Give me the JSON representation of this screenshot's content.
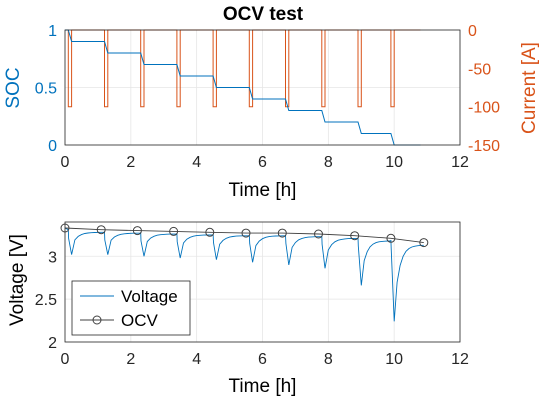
{
  "chart_data": [
    {
      "type": "line",
      "title": "OCV test",
      "xlabel": "Time [h]",
      "ylabel_left": "SOC",
      "ylabel_right": "Current [A]",
      "xlim": [
        0,
        12
      ],
      "ylim_left": [
        0,
        1
      ],
      "ylim_right": [
        -150,
        0
      ],
      "xticks": [
        "0",
        "2",
        "4",
        "6",
        "8",
        "10",
        "12"
      ],
      "yticks_left": [
        "0",
        "0.5",
        "1"
      ],
      "yticks_right": [
        "-150",
        "-100",
        "-50",
        "0"
      ],
      "grid": true,
      "colors": {
        "soc": "#0072BD",
        "current": "#D95319"
      },
      "pulse_starts_h": [
        0.1,
        1.2,
        2.3,
        3.4,
        4.5,
        5.6,
        6.7,
        7.8,
        8.9,
        9.9
      ],
      "pulse_duration_h": 0.1,
      "rest_current_a": 0,
      "pulse_current_a": -100,
      "series": [
        {
          "axis": "left",
          "x": [
            0,
            0.1,
            0.2,
            1.2,
            1.3,
            2.3,
            2.4,
            3.4,
            3.5,
            4.5,
            4.6,
            5.6,
            5.7,
            6.7,
            6.8,
            7.8,
            7.9,
            8.9,
            9.0,
            9.9,
            10.0,
            10.8
          ],
          "y": [
            1.0,
            1.0,
            0.9,
            0.9,
            0.8,
            0.8,
            0.7,
            0.7,
            0.6,
            0.6,
            0.5,
            0.5,
            0.4,
            0.4,
            0.3,
            0.3,
            0.2,
            0.2,
            0.1,
            0.1,
            0.0,
            0.0
          ]
        },
        {
          "axis": "right",
          "x": [
            0,
            10.8
          ],
          "y": [
            0,
            0
          ]
        }
      ]
    },
    {
      "type": "line",
      "title": "",
      "xlabel": "Time [h]",
      "ylabel": "Voltage [V]",
      "xlim": [
        0,
        12
      ],
      "ylim": [
        2,
        3.4
      ],
      "xticks": [
        "0",
        "2",
        "4",
        "6",
        "8",
        "10",
        "12"
      ],
      "yticks": [
        "2",
        "2.5",
        "3"
      ],
      "grid": true,
      "legend_position": "bottom-left",
      "colors": {
        "voltage": "#0072BD",
        "ocv": "#404040"
      },
      "series": [
        {
          "name": "Voltage",
          "pulse_minima": [
            3.02,
            3.02,
            3.0,
            2.98,
            2.96,
            2.93,
            2.9,
            2.86,
            2.66,
            2.24
          ]
        },
        {
          "name": "OCV",
          "x": [
            0.0,
            1.1,
            2.2,
            3.3,
            4.4,
            5.5,
            6.6,
            7.7,
            8.8,
            9.9,
            10.9
          ],
          "y": [
            3.33,
            3.31,
            3.3,
            3.29,
            3.28,
            3.27,
            3.27,
            3.26,
            3.24,
            3.21,
            3.16
          ]
        }
      ]
    }
  ]
}
